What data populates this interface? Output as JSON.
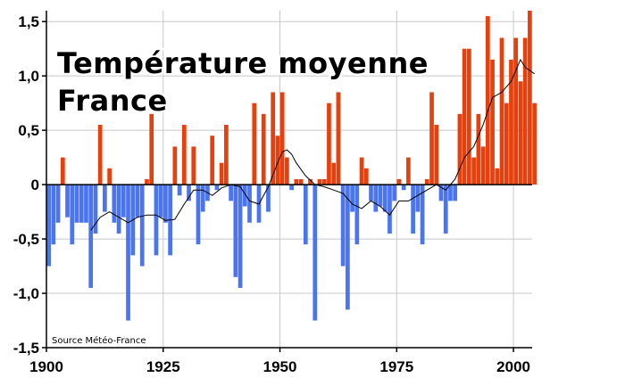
{
  "chart_data": {
    "type": "bar",
    "title_lines": [
      "Température moyenne",
      "France"
    ],
    "source": "Source Météo-France",
    "xlabel": "",
    "ylabel": "",
    "xlim": [
      1900,
      2004
    ],
    "ylim": [
      -1.5,
      1.6
    ],
    "x_ticks": [
      1900,
      1925,
      1950,
      1975,
      2000
    ],
    "y_ticks": [
      -1.5,
      -1.0,
      -0.5,
      0,
      0.5,
      1.0,
      1.5
    ],
    "y_tick_labels": [
      "-1,5",
      "-1,0",
      "-0,5",
      "0",
      "0,5",
      "1,0",
      "1,5"
    ],
    "grid": true,
    "colors": {
      "positive": "#e8400c",
      "negative": "#4a74f0",
      "trend": "#000000",
      "grid": "#c8c8c8",
      "axis": "#000000"
    },
    "series": [
      {
        "kind": "bar",
        "x": [
          1900,
          1901,
          1902,
          1903,
          1904,
          1905,
          1906,
          1907,
          1908,
          1909,
          1910,
          1911,
          1912,
          1913,
          1914,
          1915,
          1916,
          1917,
          1918,
          1919,
          1920,
          1921,
          1922,
          1923,
          1924,
          1925,
          1926,
          1927,
          1928,
          1929,
          1930,
          1931,
          1932,
          1933,
          1934,
          1935,
          1936,
          1937,
          1938,
          1939,
          1940,
          1941,
          1942,
          1943,
          1944,
          1945,
          1946,
          1947,
          1948,
          1949,
          1950,
          1951,
          1952,
          1953,
          1954,
          1955,
          1956,
          1957,
          1958,
          1959,
          1960,
          1961,
          1962,
          1963,
          1964,
          1965,
          1966,
          1967,
          1968,
          1969,
          1970,
          1971,
          1972,
          1973,
          1974,
          1975,
          1976,
          1977,
          1978,
          1979,
          1980,
          1981,
          1982,
          1983,
          1984,
          1985,
          1986,
          1987,
          1988,
          1989,
          1990,
          1991,
          1992,
          1993,
          1994,
          1995,
          1996,
          1997,
          1998,
          1999,
          2000,
          2001,
          2002,
          2003,
          2004
        ],
        "values": [
          -0.75,
          -0.55,
          -0.35,
          0.25,
          -0.3,
          -0.55,
          -0.35,
          -0.35,
          -0.35,
          -0.95,
          -0.45,
          0.55,
          -0.25,
          0.15,
          -0.35,
          -0.45,
          -0.3,
          -1.25,
          -0.65,
          -0.3,
          -0.75,
          0.05,
          0.65,
          -0.65,
          -0.3,
          -0.35,
          -0.65,
          0.35,
          -0.1,
          0.55,
          -0.15,
          0.35,
          -0.55,
          -0.25,
          -0.15,
          0.45,
          -0.05,
          0.2,
          0.55,
          -0.15,
          -0.85,
          -0.95,
          -0.2,
          -0.35,
          0.75,
          -0.35,
          0.65,
          -0.25,
          0.85,
          0.45,
          0.85,
          0.25,
          -0.05,
          0.05,
          0.05,
          -0.55,
          0.05,
          -1.25,
          0.05,
          0.05,
          0.75,
          0.2,
          0.85,
          -0.75,
          -1.15,
          -0.25,
          -0.55,
          0.25,
          0.15,
          -0.15,
          -0.25,
          -0.2,
          -0.25,
          -0.45,
          -0.15,
          0.05,
          -0.05,
          0.25,
          -0.45,
          -0.25,
          -0.55,
          0.05,
          0.85,
          0.55,
          -0.15,
          -0.45,
          -0.15,
          -0.15,
          0.65,
          1.25,
          1.25,
          0.25,
          0.65,
          0.35,
          1.55,
          1.15,
          0.15,
          1.35,
          0.75,
          1.15,
          1.35,
          0.95,
          1.35,
          1.6,
          0.75
        ]
      },
      {
        "kind": "line",
        "name": "",
        "x": [
          1909,
          1911,
          1913,
          1915,
          1917,
          1919,
          1921,
          1923,
          1925,
          1927,
          1929,
          1931,
          1933,
          1935,
          1937,
          1939,
          1941,
          1943,
          1945,
          1947,
          1949,
          1950,
          1951,
          1952,
          1953,
          1955,
          1957,
          1959,
          1961,
          1963,
          1965,
          1967,
          1969,
          1971,
          1973,
          1975,
          1977,
          1979,
          1981,
          1983,
          1985,
          1987,
          1989,
          1991,
          1993,
          1995,
          1997,
          1999,
          2001,
          2002,
          2003,
          2004
        ],
        "values": [
          -0.42,
          -0.3,
          -0.25,
          -0.3,
          -0.35,
          -0.3,
          -0.28,
          -0.28,
          -0.33,
          -0.32,
          -0.18,
          -0.05,
          -0.05,
          -0.1,
          -0.03,
          0.0,
          -0.02,
          -0.15,
          -0.18,
          -0.02,
          0.2,
          0.3,
          0.32,
          0.28,
          0.2,
          0.08,
          0.0,
          -0.02,
          -0.05,
          -0.08,
          -0.18,
          -0.22,
          -0.15,
          -0.2,
          -0.28,
          -0.15,
          -0.15,
          -0.1,
          -0.05,
          0.0,
          -0.05,
          0.05,
          0.25,
          0.35,
          0.55,
          0.8,
          0.85,
          0.95,
          1.15,
          1.08,
          1.05,
          1.02
        ]
      }
    ]
  }
}
